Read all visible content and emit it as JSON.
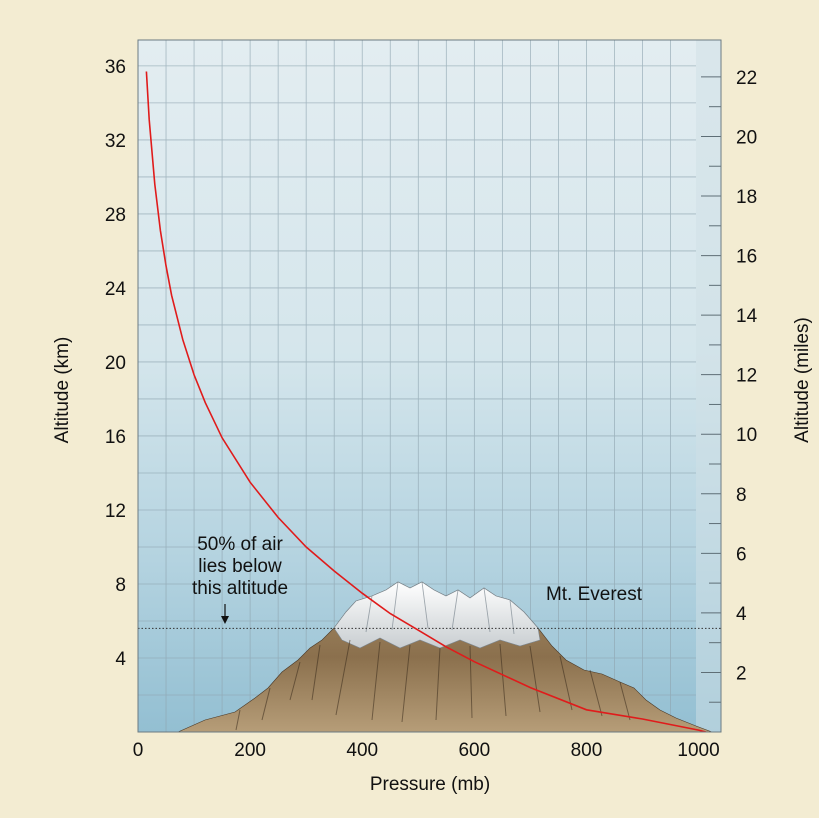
{
  "chart_data": {
    "type": "line",
    "xlabel": "Pressure (mb)",
    "ylabel_left": "Altitude (km)",
    "ylabel_right": "Altitude (miles)",
    "xlim": [
      0,
      1040
    ],
    "ylim_km": [
      0,
      37.4
    ],
    "x_ticks": [
      0,
      200,
      400,
      600,
      800,
      1000
    ],
    "x_tick_labels": [
      "0",
      "200",
      "400",
      "600",
      "800",
      "1000"
    ],
    "y_ticks_km": [
      4,
      8,
      12,
      16,
      20,
      24,
      28,
      32,
      36
    ],
    "y_tick_labels_km": [
      "4",
      "8",
      "12",
      "16",
      "20",
      "24",
      "28",
      "32",
      "36"
    ],
    "y_ticks_miles": [
      2,
      4,
      6,
      8,
      10,
      12,
      14,
      16,
      18,
      20,
      22
    ],
    "y_tick_labels_miles": [
      "2",
      "4",
      "6",
      "8",
      "10",
      "12",
      "14",
      "16",
      "18",
      "20",
      "22"
    ],
    "grid": true,
    "series": [
      {
        "color": "#e01b1b",
        "x": [
          15,
          20,
          30,
          40,
          50,
          60,
          80,
          100,
          120,
          150,
          200,
          250,
          300,
          350,
          400,
          450,
          500,
          550,
          600,
          700,
          800,
          900,
          1000,
          1013
        ],
        "y": [
          35.7,
          33.1,
          29.6,
          27.1,
          25.2,
          23.6,
          21.2,
          19.3,
          17.8,
          15.9,
          13.5,
          11.6,
          10.0,
          8.7,
          7.5,
          6.4,
          5.5,
          4.6,
          3.8,
          2.4,
          1.2,
          0.7,
          0.1,
          0.0
        ]
      }
    ],
    "annotations": [
      {
        "text_lines": [
          "50% of air",
          "lies below",
          "this altitude"
        ],
        "y": 5.6,
        "arrow_x": 160
      },
      {
        "text": "Mt. Everest",
        "x": 740,
        "y": 6.8
      }
    ],
    "reference_line_km": 5.6
  },
  "colors": {
    "frame_background": "#f3ecd2",
    "sky_top": "#e3edf1",
    "sky_bottom": "#93bfd2",
    "curve": "#e01b1b",
    "grid": "#8fa5b0"
  }
}
